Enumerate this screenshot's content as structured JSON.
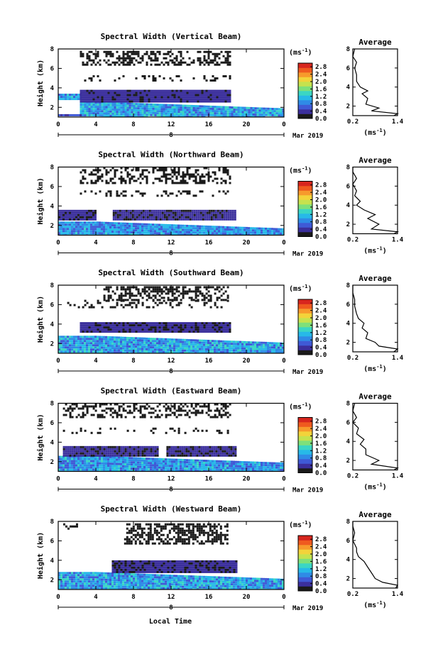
{
  "chart_data": {
    "type": "heatmap",
    "x_tick_labels": [
      "0",
      "4",
      "8",
      "12",
      "16",
      "20",
      "0"
    ],
    "x_range_hours": [
      0,
      24
    ],
    "y_tick_labels": [
      "2",
      "4",
      "6",
      "8"
    ],
    "y_range_km": [
      1,
      8
    ],
    "ylabel": "Height (km)",
    "date_label": "Mar 2019",
    "day_marker": "8",
    "xlabel": "Local Time",
    "colorbar": {
      "title": "(ms",
      "title_exp": "-1",
      "title_close": ")",
      "tick_labels": [
        "0.0",
        "0.4",
        "0.8",
        "1.2",
        "1.6",
        "2.0",
        "2.4",
        "2.8"
      ],
      "range": [
        0,
        3.0
      ],
      "colors": [
        "#1a1a1a",
        "#3b2f9c",
        "#3f5ad6",
        "#2f8be6",
        "#27b9e8",
        "#3bd6c4",
        "#7ee07a",
        "#c6e24e",
        "#f3d33a",
        "#f79a2c",
        "#ef5a1f",
        "#d7261e"
      ]
    },
    "avg_title": "Average",
    "avg_x_tick_labels": [
      "0.2",
      "1.4"
    ],
    "avg_xlim": [
      0.2,
      1.4
    ],
    "avg_xlabel": "(ms",
    "avg_xlabel_exp": "-1",
    "avg_xlabel_close": ")",
    "avg_y_tick_labels": [
      "2",
      "4",
      "6",
      "8"
    ],
    "panels": [
      {
        "title": "Spectral Width (Vertical Beam)",
        "regions": [
          {
            "x0": 2.3,
            "x1": 25,
            "y0": 1.1,
            "y1": 2.6,
            "v": 1.0,
            "slope": 0.7
          },
          {
            "x0": 0.0,
            "x1": 2.3,
            "y0": 1.1,
            "y1": 1.3,
            "v": 0.55
          },
          {
            "x0": 0.0,
            "x1": 2.3,
            "y0": 2.8,
            "y1": 3.4,
            "v": 0.9
          },
          {
            "x0": 2.3,
            "x1": 18.2,
            "y0": 2.6,
            "y1": 3.8,
            "v": 0.35
          },
          {
            "x0": 2.3,
            "x1": 18.2,
            "y0": 4.8,
            "y1": 5.3,
            "v": 0.12,
            "density": 0.15
          },
          {
            "x0": 2.3,
            "x1": 18.2,
            "y0": 6.3,
            "y1": 7.8,
            "v": 0.15,
            "density": 0.45
          }
        ],
        "avg_profile": [
          [
            1.3,
            1.0
          ],
          [
            1.4,
            1.2
          ],
          [
            0.7,
            1.5
          ],
          [
            0.9,
            1.8
          ],
          [
            0.55,
            2.2
          ],
          [
            0.6,
            2.8
          ],
          [
            0.45,
            3.3
          ],
          [
            0.6,
            3.6
          ],
          [
            0.4,
            4.0
          ],
          [
            0.3,
            4.6
          ],
          [
            0.3,
            5.3
          ],
          [
            0.25,
            6.0
          ],
          [
            0.3,
            6.6
          ],
          [
            0.2,
            7.2
          ],
          [
            0.25,
            8.0
          ]
        ]
      },
      {
        "title": "Spectral Width (Northward Beam)",
        "regions": [
          {
            "x0": 0.0,
            "x1": 25,
            "y0": 1.0,
            "y1": 2.4,
            "v": 0.9,
            "slope": 0.7
          },
          {
            "x0": 0.0,
            "x1": 4.0,
            "y0": 2.6,
            "y1": 3.6,
            "v": 0.3
          },
          {
            "x0": 5.8,
            "x1": 18.9,
            "y0": 2.6,
            "y1": 3.6,
            "v": 0.3
          },
          {
            "x0": 2.3,
            "x1": 18.2,
            "y0": 5.0,
            "y1": 5.6,
            "v": 0.12,
            "density": 0.2
          },
          {
            "x0": 2.3,
            "x1": 18.2,
            "y0": 6.3,
            "y1": 8.0,
            "v": 0.12,
            "density": 0.4
          }
        ],
        "avg_profile": [
          [
            1.3,
            1.0
          ],
          [
            1.4,
            1.2
          ],
          [
            0.7,
            1.5
          ],
          [
            0.9,
            2.0
          ],
          [
            0.6,
            2.6
          ],
          [
            0.8,
            3.0
          ],
          [
            0.5,
            3.5
          ],
          [
            0.3,
            4.0
          ],
          [
            0.4,
            4.4
          ],
          [
            0.25,
            5.0
          ],
          [
            0.3,
            5.5
          ],
          [
            0.2,
            6.2
          ],
          [
            0.3,
            6.8
          ],
          [
            0.2,
            7.5
          ],
          [
            0.2,
            8.0
          ]
        ]
      },
      {
        "title": "Spectral Width (Southward Beam)",
        "regions": [
          {
            "x0": 0.0,
            "x1": 25,
            "y0": 1.0,
            "y1": 2.8,
            "v": 1.0,
            "slope": 0.7
          },
          {
            "x0": 2.3,
            "x1": 18.2,
            "y0": 3.2,
            "y1": 4.2,
            "v": 0.3
          },
          {
            "x0": 4.8,
            "x1": 18.0,
            "y0": 6.5,
            "y1": 7.9,
            "v": 0.12,
            "density": 0.5
          },
          {
            "x0": 0.5,
            "x1": 18.0,
            "y0": 5.8,
            "y1": 6.5,
            "v": 0.12,
            "density": 0.2
          }
        ],
        "avg_profile": [
          [
            1.3,
            1.0
          ],
          [
            1.4,
            1.3
          ],
          [
            0.9,
            1.6
          ],
          [
            0.8,
            2.0
          ],
          [
            0.55,
            2.4
          ],
          [
            0.6,
            3.0
          ],
          [
            0.45,
            3.5
          ],
          [
            0.5,
            4.0
          ],
          [
            0.35,
            4.5
          ],
          [
            0.3,
            5.0
          ],
          [
            0.25,
            5.8
          ],
          [
            0.25,
            6.5
          ],
          [
            0.2,
            7.2
          ],
          [
            0.2,
            8.0
          ]
        ]
      },
      {
        "title": "Spectral Width (Eastward Beam)",
        "regions": [
          {
            "x0": 0.0,
            "x1": 25,
            "y0": 1.0,
            "y1": 2.6,
            "v": 0.95,
            "slope": 0.7
          },
          {
            "x0": 0.5,
            "x1": 10.5,
            "y0": 2.7,
            "y1": 3.6,
            "v": 0.3
          },
          {
            "x0": 11.5,
            "x1": 18.9,
            "y0": 2.7,
            "y1": 3.6,
            "v": 0.3
          },
          {
            "x0": 0.5,
            "x1": 18.2,
            "y0": 4.9,
            "y1": 5.5,
            "v": 0.12,
            "density": 0.2
          },
          {
            "x0": 0.5,
            "x1": 18.2,
            "y0": 6.5,
            "y1": 8.0,
            "v": 0.12,
            "density": 0.45
          }
        ],
        "avg_profile": [
          [
            1.3,
            1.0
          ],
          [
            1.4,
            1.2
          ],
          [
            0.7,
            1.6
          ],
          [
            0.9,
            2.0
          ],
          [
            0.55,
            2.6
          ],
          [
            0.55,
            3.2
          ],
          [
            0.4,
            3.7
          ],
          [
            0.5,
            4.2
          ],
          [
            0.3,
            4.8
          ],
          [
            0.35,
            5.4
          ],
          [
            0.2,
            6.0
          ],
          [
            0.3,
            6.5
          ],
          [
            0.2,
            7.2
          ],
          [
            0.25,
            8.0
          ]
        ]
      },
      {
        "title": "Spectral Width (Westward Beam)",
        "regions": [
          {
            "x0": 0.0,
            "x1": 25,
            "y0": 1.0,
            "y1": 2.8,
            "v": 1.0,
            "slope": 0.7
          },
          {
            "x0": 5.7,
            "x1": 18.9,
            "y0": 2.8,
            "y1": 4.0,
            "v": 0.3
          },
          {
            "x0": 7.0,
            "x1": 18.0,
            "y0": 5.8,
            "y1": 7.8,
            "v": 0.12,
            "density": 0.55
          },
          {
            "x0": 0.3,
            "x1": 2.0,
            "y0": 7.2,
            "y1": 7.8,
            "v": 0.12,
            "density": 0.4
          }
        ],
        "avg_profile": [
          [
            1.35,
            1.0
          ],
          [
            1.4,
            1.3
          ],
          [
            1.0,
            1.6
          ],
          [
            0.8,
            2.0
          ],
          [
            0.7,
            2.6
          ],
          [
            0.6,
            3.2
          ],
          [
            0.5,
            3.8
          ],
          [
            0.35,
            4.3
          ],
          [
            0.3,
            4.8
          ],
          [
            0.3,
            5.2
          ],
          [
            0.2,
            6.0
          ],
          [
            0.25,
            6.8
          ],
          [
            0.2,
            7.5
          ],
          [
            0.2,
            8.0
          ]
        ]
      }
    ]
  }
}
